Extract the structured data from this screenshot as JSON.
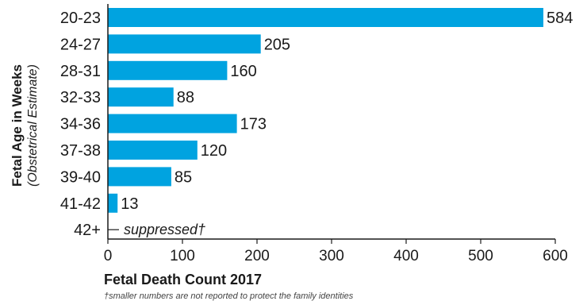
{
  "chart_data": {
    "type": "bar",
    "orientation": "horizontal",
    "categories": [
      "20-23",
      "24-27",
      "28-31",
      "32-33",
      "34-36",
      "37-38",
      "39-40",
      "41-42",
      "42+"
    ],
    "values": [
      584,
      205,
      160,
      88,
      173,
      120,
      85,
      13,
      null
    ],
    "value_labels": [
      "584",
      "205",
      "160",
      "88",
      "173",
      "120",
      "85",
      "13",
      "suppressed†"
    ],
    "ylabel": "Fetal Age in Weeks",
    "ylabel_sub": "(Obstetrical Estimate)",
    "xlabel": "Fetal Death Count 2017",
    "xlim": [
      0,
      600
    ],
    "xticks": [
      0,
      100,
      200,
      300,
      400,
      500,
      600
    ],
    "footnote": "†smaller numbers are not reported to protect the family identities",
    "bar_color": "#00a3e0",
    "grid": false
  }
}
